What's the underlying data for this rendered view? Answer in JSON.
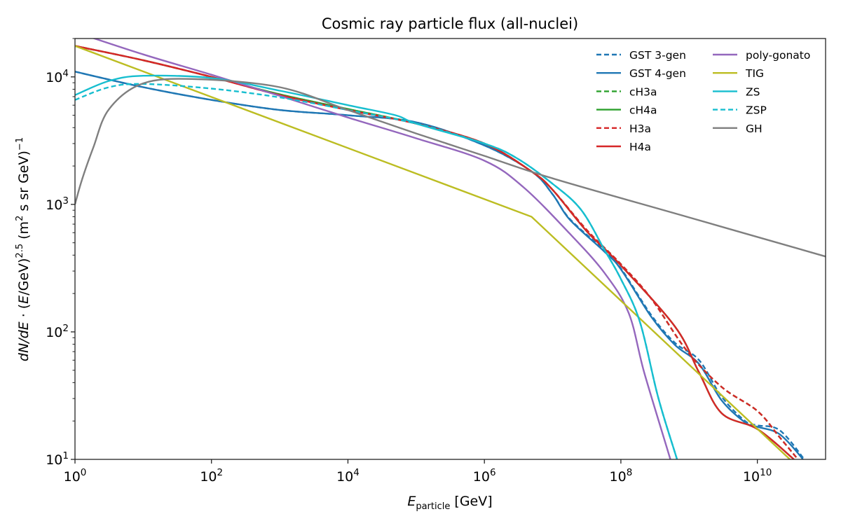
{
  "chart_data": {
    "type": "line",
    "title": "Cosmic ray particle flux (all-nuclei)",
    "xlabel": [
      {
        "t": "E",
        "s": "i"
      },
      {
        "t": "particle",
        "s": "sub"
      },
      {
        "t": " [GeV]",
        "s": ""
      }
    ],
    "ylabel": [
      {
        "t": "dN/dE",
        "s": "i"
      },
      {
        "t": " · (",
        "s": ""
      },
      {
        "t": "E",
        "s": "i"
      },
      {
        "t": "/GeV)",
        "s": ""
      },
      {
        "t": "2.5",
        "s": "sup"
      },
      {
        "t": " (m",
        "s": ""
      },
      {
        "t": "2",
        "s": "sup"
      },
      {
        "t": " s sr GeV)",
        "s": ""
      },
      {
        "t": "−1",
        "s": "sup"
      }
    ],
    "x_scale": "log",
    "y_scale": "log",
    "xlim": [
      1,
      100000000000.0
    ],
    "ylim": [
      10,
      20000
    ],
    "x_ticks": [
      {
        "v": 1,
        "base": "10",
        "exp": "0"
      },
      {
        "v": 100,
        "base": "10",
        "exp": "2"
      },
      {
        "v": 10000.0,
        "base": "10",
        "exp": "4"
      },
      {
        "v": 1000000.0,
        "base": "10",
        "exp": "6"
      },
      {
        "v": 100000000.0,
        "base": "10",
        "exp": "8"
      },
      {
        "v": 10000000000.0,
        "base": "10",
        "exp": "10"
      }
    ],
    "y_ticks": [
      {
        "v": 10,
        "base": "10",
        "exp": "1"
      },
      {
        "v": 100,
        "base": "10",
        "exp": "2"
      },
      {
        "v": 1000,
        "base": "10",
        "exp": "3"
      },
      {
        "v": 10000,
        "base": "10",
        "exp": "4"
      }
    ],
    "grid": false,
    "legend_placement": "top-right",
    "legend_columns": 2,
    "series": [
      {
        "name": "GST 3-gen",
        "color": "#1f77b4",
        "dash": true,
        "points": [
          [
            1,
            11000
          ],
          [
            10,
            8300
          ],
          [
            100,
            6600
          ],
          [
            1000,
            5500
          ],
          [
            10000.0,
            5000
          ],
          [
            100000.0,
            4400
          ],
          [
            1000000.0,
            2900
          ],
          [
            5000000.0,
            1800
          ],
          [
            10000000.0,
            1200
          ],
          [
            17800000.0,
            770
          ],
          [
            57500000.0,
            435
          ],
          [
            100000000.0,
            315
          ],
          [
            280000000.0,
            135
          ],
          [
            620000000.0,
            82
          ],
          [
            1400000000.0,
            60
          ],
          [
            3000000000.0,
            31
          ],
          [
            6600000000.0,
            20
          ],
          [
            10000000000.0,
            18.5
          ],
          [
            21000000000.0,
            17
          ],
          [
            46000000000.0,
            10.4
          ],
          [
            52000000000.0,
            9
          ]
        ]
      },
      {
        "name": "GST 4-gen",
        "color": "#1f77b4",
        "dash": false,
        "points": [
          [
            1,
            11000
          ],
          [
            10,
            8300
          ],
          [
            100,
            6600
          ],
          [
            1000,
            5500
          ],
          [
            10000.0,
            5000
          ],
          [
            100000.0,
            4400
          ],
          [
            1000000.0,
            2900
          ],
          [
            5000000.0,
            1800
          ],
          [
            10000000.0,
            1200
          ],
          [
            17800000.0,
            760
          ],
          [
            57500000.0,
            425
          ],
          [
            100000000.0,
            310
          ],
          [
            280000000.0,
            131
          ],
          [
            620000000.0,
            79
          ],
          [
            1400000000.0,
            56
          ],
          [
            3000000000.0,
            29
          ],
          [
            6600000000.0,
            19.5
          ],
          [
            10000000000.0,
            18
          ],
          [
            21000000000.0,
            15.8
          ],
          [
            44000000000.0,
            10.4
          ],
          [
            50000000000.0,
            9
          ]
        ]
      },
      {
        "name": "cH3a",
        "color": "#2ca02c",
        "dash": true,
        "points": [
          [
            1,
            17500
          ],
          [
            10,
            13500
          ],
          [
            100,
            10000
          ],
          [
            1000,
            7300
          ],
          [
            10000.0,
            5600
          ],
          [
            100000.0,
            4300
          ],
          [
            1000000.0,
            3000
          ],
          [
            5000000.0,
            1800
          ],
          [
            10000000.0,
            1300
          ],
          [
            31600000.0,
            630
          ],
          [
            100000000.0,
            340
          ],
          [
            280000000.0,
            182
          ],
          [
            910000000.0,
            72
          ],
          [
            3000000000.0,
            37
          ],
          [
            10000000000.0,
            24
          ],
          [
            21000000000.0,
            15
          ],
          [
            37000000000.0,
            10.4
          ],
          [
            45000000000.0,
            9
          ]
        ]
      },
      {
        "name": "cH4a",
        "color": "#2ca02c",
        "dash": false,
        "points": [
          [
            1,
            17500
          ],
          [
            10,
            13500
          ],
          [
            100,
            10000
          ],
          [
            1000,
            7300
          ],
          [
            10000.0,
            5600
          ],
          [
            100000.0,
            4300
          ],
          [
            1000000.0,
            3000
          ],
          [
            5000000.0,
            1800
          ],
          [
            10000000.0,
            1300
          ],
          [
            31600000.0,
            615
          ],
          [
            89000000.0,
            355
          ],
          [
            620000000.0,
            110
          ],
          [
            1400000000.0,
            48
          ],
          [
            3000000000.0,
            23
          ],
          [
            10000000000.0,
            17.3
          ],
          [
            31600000000.0,
            10.4
          ],
          [
            40000000000.0,
            9
          ]
        ]
      },
      {
        "name": "H3a",
        "color": "#d62728",
        "dash": true,
        "points": [
          [
            1,
            17500
          ],
          [
            10,
            13500
          ],
          [
            100,
            10000
          ],
          [
            1000,
            7200
          ],
          [
            10000.0,
            5500
          ],
          [
            100000.0,
            4300
          ],
          [
            1000000.0,
            3000
          ],
          [
            5000000.0,
            1800
          ],
          [
            10000000.0,
            1300
          ],
          [
            31600000.0,
            630
          ],
          [
            100000000.0,
            340
          ],
          [
            280000000.0,
            182
          ],
          [
            910000000.0,
            72
          ],
          [
            3000000000.0,
            37
          ],
          [
            10000000000.0,
            24
          ],
          [
            21000000000.0,
            15
          ],
          [
            37000000000.0,
            10.4
          ],
          [
            45000000000.0,
            9
          ]
        ]
      },
      {
        "name": "H4a",
        "color": "#d62728",
        "dash": false,
        "points": [
          [
            1,
            17500
          ],
          [
            10,
            13500
          ],
          [
            100,
            10000
          ],
          [
            1000,
            7200
          ],
          [
            10000.0,
            5500
          ],
          [
            100000.0,
            4300
          ],
          [
            1000000.0,
            3000
          ],
          [
            5000000.0,
            1800
          ],
          [
            10000000.0,
            1300
          ],
          [
            31600000.0,
            615
          ],
          [
            89000000.0,
            355
          ],
          [
            620000000.0,
            110
          ],
          [
            1400000000.0,
            48
          ],
          [
            3000000000.0,
            23
          ],
          [
            10000000000.0,
            17.3
          ],
          [
            31600000000.0,
            10.4
          ],
          [
            40000000000.0,
            9
          ]
        ]
      },
      {
        "name": "poly-gonato",
        "color": "#9467bd",
        "dash": false,
        "points": [
          [
            1,
            22500
          ],
          [
            10,
            15000
          ],
          [
            100,
            10400
          ],
          [
            1000,
            7100
          ],
          [
            10000.0,
            4800
          ],
          [
            100000.0,
            3300
          ],
          [
            1000000.0,
            2200
          ],
          [
            3700000.0,
            1370
          ],
          [
            17800000.0,
            590
          ],
          [
            57500000.0,
            290
          ],
          [
            130000000.0,
            141
          ],
          [
            220000000.0,
            48
          ],
          [
            520000000.0,
            10.4
          ],
          [
            600000000.0,
            8
          ]
        ]
      },
      {
        "name": "TIG",
        "color": "#bcbd22",
        "dash": false,
        "points": [
          [
            1,
            17500
          ],
          [
            4900000.0,
            800
          ],
          [
            30000000000.0,
            10
          ],
          [
            50000000000.0,
            7.8
          ]
        ]
      },
      {
        "name": "ZS",
        "color": "#17becf",
        "dash": false,
        "points": [
          [
            1,
            7200
          ],
          [
            3.16,
            9300
          ],
          [
            10,
            10200
          ],
          [
            100,
            9800
          ],
          [
            1000,
            7800
          ],
          [
            10000.0,
            6000
          ],
          [
            50000.0,
            5000
          ],
          [
            100000.0,
            4300
          ],
          [
            1000000.0,
            3000
          ],
          [
            3000000.0,
            2300
          ],
          [
            10000000.0,
            1450
          ],
          [
            26000000.0,
            910
          ],
          [
            57500000.0,
            440
          ],
          [
            100000000.0,
            260
          ],
          [
            190000000.0,
            120
          ],
          [
            350000000.0,
            31
          ],
          [
            650000000.0,
            10.4
          ],
          [
            750000000.0,
            8
          ]
        ]
      },
      {
        "name": "ZSP",
        "color": "#17becf",
        "dash": true,
        "points": [
          [
            1,
            6600
          ],
          [
            3.16,
            8300
          ],
          [
            10,
            8800
          ],
          [
            100,
            8100
          ],
          [
            1000,
            6900
          ],
          [
            10000.0,
            5500
          ],
          [
            100000.0,
            4300
          ],
          [
            1000000.0,
            3000
          ],
          [
            3000000.0,
            2300
          ],
          [
            10000000.0,
            1450
          ],
          [
            26000000.0,
            910
          ],
          [
            57500000.0,
            440
          ],
          [
            100000000.0,
            260
          ],
          [
            190000000.0,
            120
          ],
          [
            350000000.0,
            31
          ],
          [
            650000000.0,
            10.4
          ],
          [
            750000000.0,
            8
          ]
        ]
      },
      {
        "name": "GH",
        "color": "#7f7f7f",
        "dash": false,
        "points": [
          [
            1,
            1000
          ],
          [
            1.26,
            1550
          ],
          [
            1.86,
            2800
          ],
          [
            3.16,
            5600
          ],
          [
            10,
            8900
          ],
          [
            60,
            9600
          ],
          [
            1000,
            8300
          ],
          [
            10000.0,
            5500
          ],
          [
            100000.0,
            3600
          ],
          [
            1000000.0,
            2400
          ],
          [
            10000000.0,
            1600
          ],
          [
            1000000000.0,
            790
          ],
          [
            100000000000.0,
            390
          ]
        ]
      }
    ]
  }
}
